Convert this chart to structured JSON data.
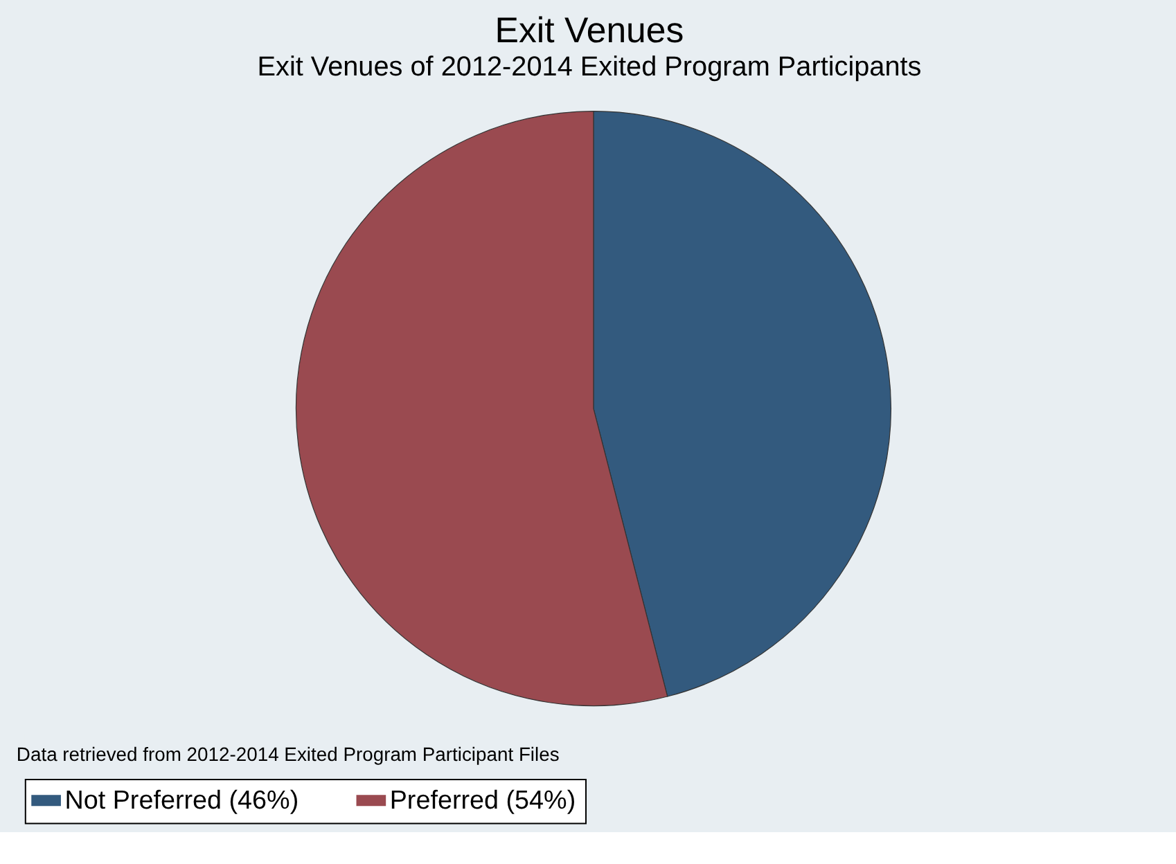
{
  "chart_data": {
    "type": "pie",
    "title": "Exit Venues",
    "subtitle": "Exit Venues of 2012-2014 Exited Program Participants",
    "categories": [
      "Not Preferred (46%)",
      "Preferred (54%)"
    ],
    "values": [
      46,
      54
    ],
    "colors": [
      "#335a7e",
      "#9a4a50"
    ],
    "legend": "bottom",
    "annotations": [
      "Data retrieved from 2012-2014 Exited Program Participant Files"
    ]
  }
}
